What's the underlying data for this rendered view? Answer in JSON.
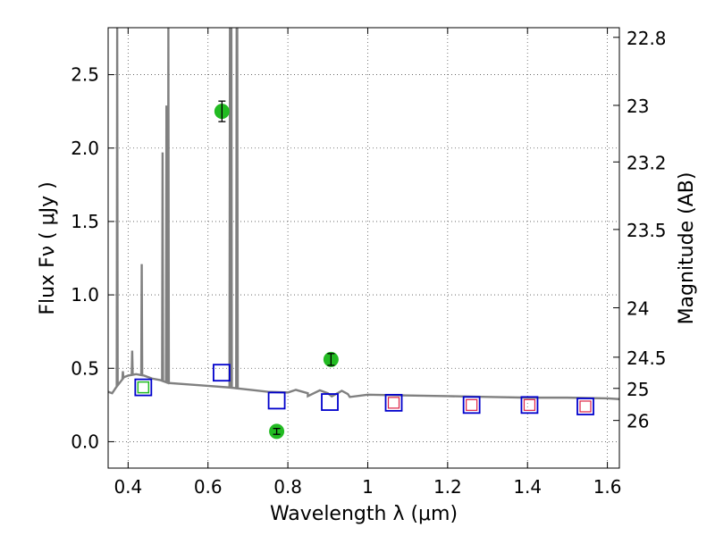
{
  "chart_data": {
    "type": "scatter",
    "xlabel": "Wavelength  λ (μm)",
    "ylabel": "Flux  Fν  ( μJy )",
    "right_ylabel": "Magnitude (AB)",
    "xlim": [
      0.35,
      1.63
    ],
    "ylim": [
      -0.18,
      2.82
    ],
    "grid": true,
    "x_ticks": [
      {
        "value": 0.4,
        "label": "0.4"
      },
      {
        "value": 0.6,
        "label": "0.6"
      },
      {
        "value": 0.8,
        "label": "0.8"
      },
      {
        "value": 1.0,
        "label": "1"
      },
      {
        "value": 1.2,
        "label": "1.2"
      },
      {
        "value": 1.4,
        "label": "1.4"
      },
      {
        "value": 1.6,
        "label": "1.6"
      }
    ],
    "y_ticks": [
      {
        "value": 0.0,
        "label": "0.0"
      },
      {
        "value": 0.5,
        "label": "0.5"
      },
      {
        "value": 1.0,
        "label": "1.0"
      },
      {
        "value": 1.5,
        "label": "1.5"
      },
      {
        "value": 2.0,
        "label": "2.0"
      },
      {
        "value": 2.5,
        "label": "2.5"
      }
    ],
    "magnitude_ticks": [
      {
        "value": 22.8,
        "label": "22.8"
      },
      {
        "value": 23.0,
        "label": "23"
      },
      {
        "value": 23.2,
        "label": "23.2"
      },
      {
        "value": 23.5,
        "label": "23.5"
      },
      {
        "value": 24.0,
        "label": "24"
      },
      {
        "value": 24.5,
        "label": "24.5"
      },
      {
        "value": 25.0,
        "label": "25"
      },
      {
        "value": 26.0,
        "label": "26"
      }
    ],
    "colors": {
      "spectrum": "#808080",
      "observed_fill": "#22bb22",
      "model_square": "#0000cc",
      "ir_square_inner": "#dd2244",
      "error_bar": "#000000",
      "grid": "#555555"
    },
    "spectrum": {
      "continuum": [
        [
          0.35,
          0.34
        ],
        [
          0.36,
          0.33
        ],
        [
          0.37,
          0.37
        ],
        [
          0.39,
          0.44
        ],
        [
          0.4,
          0.45
        ],
        [
          0.42,
          0.46
        ],
        [
          0.44,
          0.45
        ],
        [
          0.46,
          0.43
        ],
        [
          0.48,
          0.42
        ],
        [
          0.5,
          0.4
        ],
        [
          0.55,
          0.39
        ],
        [
          0.6,
          0.38
        ],
        [
          0.65,
          0.37
        ],
        [
          0.7,
          0.355
        ],
        [
          0.75,
          0.34
        ],
        [
          0.8,
          0.335
        ],
        [
          0.85,
          0.33
        ],
        [
          0.9,
          0.33
        ],
        [
          0.95,
          0.325
        ],
        [
          1.0,
          0.32
        ],
        [
          1.1,
          0.315
        ],
        [
          1.2,
          0.31
        ],
        [
          1.3,
          0.305
        ],
        [
          1.4,
          0.3
        ],
        [
          1.5,
          0.3
        ],
        [
          1.6,
          0.295
        ],
        [
          1.63,
          0.29
        ]
      ],
      "emission_lines": [
        {
          "x": 0.3727,
          "peak": 2.82
        },
        {
          "x": 0.3869,
          "peak": 0.48
        },
        {
          "x": 0.4102,
          "peak": 0.62
        },
        {
          "x": 0.4341,
          "peak": 1.21
        },
        {
          "x": 0.4863,
          "peak": 1.97
        },
        {
          "x": 0.496,
          "peak": 2.29
        },
        {
          "x": 0.5008,
          "peak": 2.82
        },
        {
          "x": 0.655,
          "peak": 2.82
        },
        {
          "x": 0.6565,
          "peak": 2.82
        },
        {
          "x": 0.6585,
          "peak": 2.82
        },
        {
          "x": 0.6718,
          "peak": 2.82
        },
        {
          "x": 0.6733,
          "peak": 2.82
        }
      ]
    },
    "observed": [
      {
        "x": 0.635,
        "y": 2.25,
        "err": 0.07
      },
      {
        "x": 0.772,
        "y": 0.07,
        "err": 0.02
      },
      {
        "x": 0.908,
        "y": 0.56,
        "err": 0.04
      }
    ],
    "model_squares": [
      {
        "x": 0.438,
        "y": 0.37,
        "inner": "green"
      },
      {
        "x": 0.634,
        "y": 0.47,
        "inner": "none"
      },
      {
        "x": 0.772,
        "y": 0.28,
        "inner": "none"
      },
      {
        "x": 0.905,
        "y": 0.27,
        "inner": "none"
      },
      {
        "x": 1.065,
        "y": 0.265,
        "inner": "red"
      },
      {
        "x": 1.26,
        "y": 0.25,
        "inner": "red"
      },
      {
        "x": 1.405,
        "y": 0.25,
        "inner": "red"
      },
      {
        "x": 1.545,
        "y": 0.24,
        "inner": "red"
      }
    ]
  }
}
